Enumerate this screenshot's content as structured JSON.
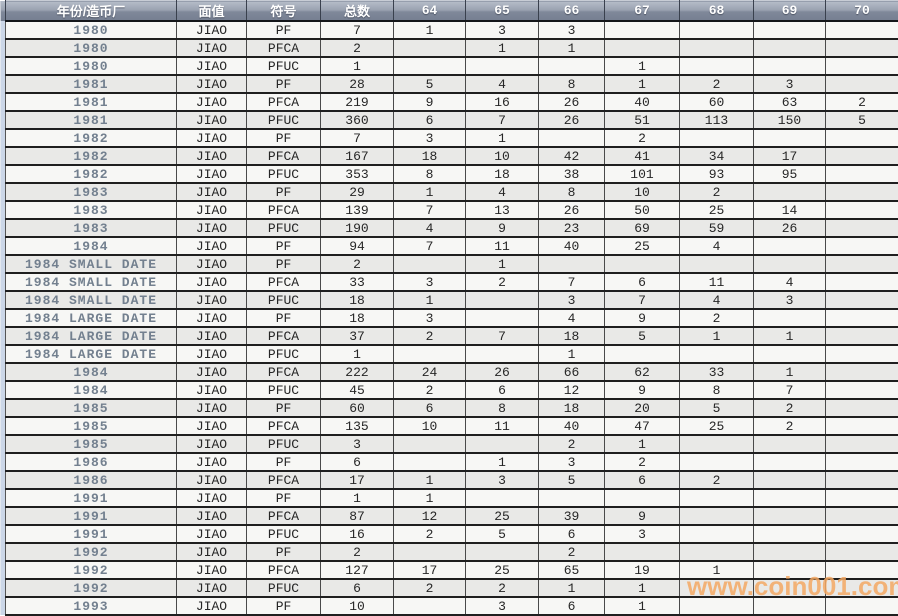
{
  "colors": {
    "header_top": "#b6bdc9",
    "header_bottom": "#767f91",
    "row_light": "#f7f7f5",
    "row_dark": "#e9e9e7",
    "year_text": "#73808f",
    "cell_text": "#262626",
    "left_strip": "#ccd7e8",
    "grid_line": "#1f1f1f",
    "watermark": "#f3a863"
  },
  "table": {
    "columns": [
      "年份/造币厂",
      "面值",
      "符号",
      "总数",
      "64",
      "65",
      "66",
      "67",
      "68",
      "69",
      "70"
    ],
    "rows": [
      [
        "1980",
        "JIAO",
        "PF",
        "7",
        "1",
        "3",
        "3",
        "",
        "",
        "",
        ""
      ],
      [
        "1980",
        "JIAO",
        "PFCA",
        "2",
        "",
        "1",
        "1",
        "",
        "",
        "",
        ""
      ],
      [
        "1980",
        "JIAO",
        "PFUC",
        "1",
        "",
        "",
        "",
        "1",
        "",
        "",
        ""
      ],
      [
        "1981",
        "JIAO",
        "PF",
        "28",
        "5",
        "4",
        "8",
        "1",
        "2",
        "3",
        ""
      ],
      [
        "1981",
        "JIAO",
        "PFCA",
        "219",
        "9",
        "16",
        "26",
        "40",
        "60",
        "63",
        "2"
      ],
      [
        "1981",
        "JIAO",
        "PFUC",
        "360",
        "6",
        "7",
        "26",
        "51",
        "113",
        "150",
        "5"
      ],
      [
        "1982",
        "JIAO",
        "PF",
        "7",
        "3",
        "1",
        "",
        "2",
        "",
        "",
        ""
      ],
      [
        "1982",
        "JIAO",
        "PFCA",
        "167",
        "18",
        "10",
        "42",
        "41",
        "34",
        "17",
        ""
      ],
      [
        "1982",
        "JIAO",
        "PFUC",
        "353",
        "8",
        "18",
        "38",
        "101",
        "93",
        "95",
        ""
      ],
      [
        "1983",
        "JIAO",
        "PF",
        "29",
        "1",
        "4",
        "8",
        "10",
        "2",
        "",
        ""
      ],
      [
        "1983",
        "JIAO",
        "PFCA",
        "139",
        "7",
        "13",
        "26",
        "50",
        "25",
        "14",
        ""
      ],
      [
        "1983",
        "JIAO",
        "PFUC",
        "190",
        "4",
        "9",
        "23",
        "69",
        "59",
        "26",
        ""
      ],
      [
        "1984",
        "JIAO",
        "PF",
        "94",
        "7",
        "11",
        "40",
        "25",
        "4",
        "",
        ""
      ],
      [
        "1984 SMALL DATE",
        "JIAO",
        "PF",
        "2",
        "",
        "1",
        "",
        "",
        "",
        "",
        ""
      ],
      [
        "1984 SMALL DATE",
        "JIAO",
        "PFCA",
        "33",
        "3",
        "2",
        "7",
        "6",
        "11",
        "4",
        ""
      ],
      [
        "1984 SMALL DATE",
        "JIAO",
        "PFUC",
        "18",
        "1",
        "",
        "3",
        "7",
        "4",
        "3",
        ""
      ],
      [
        "1984 LARGE DATE",
        "JIAO",
        "PF",
        "18",
        "3",
        "",
        "4",
        "9",
        "2",
        "",
        ""
      ],
      [
        "1984 LARGE DATE",
        "JIAO",
        "PFCA",
        "37",
        "2",
        "7",
        "18",
        "5",
        "1",
        "1",
        ""
      ],
      [
        "1984 LARGE DATE",
        "JIAO",
        "PFUC",
        "1",
        "",
        "",
        "1",
        "",
        "",
        "",
        ""
      ],
      [
        "1984",
        "JIAO",
        "PFCA",
        "222",
        "24",
        "26",
        "66",
        "62",
        "33",
        "1",
        ""
      ],
      [
        "1984",
        "JIAO",
        "PFUC",
        "45",
        "2",
        "6",
        "12",
        "9",
        "8",
        "7",
        ""
      ],
      [
        "1985",
        "JIAO",
        "PF",
        "60",
        "6",
        "8",
        "18",
        "20",
        "5",
        "2",
        ""
      ],
      [
        "1985",
        "JIAO",
        "PFCA",
        "135",
        "10",
        "11",
        "40",
        "47",
        "25",
        "2",
        ""
      ],
      [
        "1985",
        "JIAO",
        "PFUC",
        "3",
        "",
        "",
        "2",
        "1",
        "",
        "",
        ""
      ],
      [
        "1986",
        "JIAO",
        "PF",
        "6",
        "",
        "1",
        "3",
        "2",
        "",
        "",
        ""
      ],
      [
        "1986",
        "JIAO",
        "PFCA",
        "17",
        "1",
        "3",
        "5",
        "6",
        "2",
        "",
        ""
      ],
      [
        "1991",
        "JIAO",
        "PF",
        "1",
        "1",
        "",
        "",
        "",
        "",
        "",
        ""
      ],
      [
        "1991",
        "JIAO",
        "PFCA",
        "87",
        "12",
        "25",
        "39",
        "9",
        "",
        "",
        ""
      ],
      [
        "1991",
        "JIAO",
        "PFUC",
        "16",
        "2",
        "5",
        "6",
        "3",
        "",
        "",
        ""
      ],
      [
        "1992",
        "JIAO",
        "PF",
        "2",
        "",
        "",
        "2",
        "",
        "",
        "",
        ""
      ],
      [
        "1992",
        "JIAO",
        "PFCA",
        "127",
        "17",
        "25",
        "65",
        "19",
        "1",
        "",
        ""
      ],
      [
        "1992",
        "JIAO",
        "PFUC",
        "6",
        "2",
        "2",
        "1",
        "1",
        "",
        "",
        ""
      ],
      [
        "1993",
        "JIAO",
        "PF",
        "10",
        "",
        "3",
        "6",
        "1",
        "",
        "",
        ""
      ]
    ]
  },
  "watermark": {
    "text": "www.coin001.com"
  }
}
